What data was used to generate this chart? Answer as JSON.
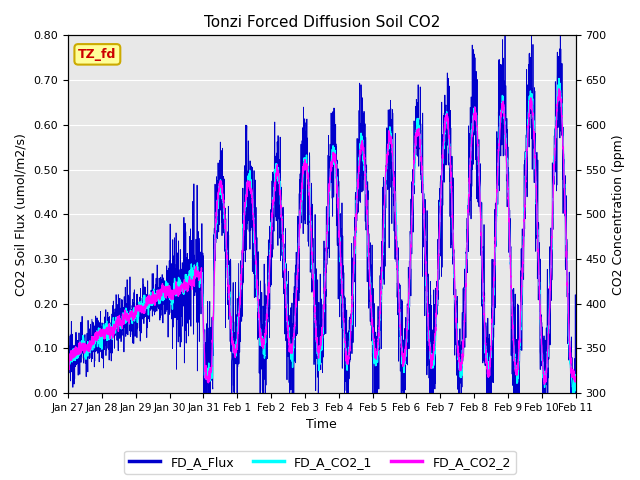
{
  "title": "Tonzi Forced Diffusion Soil CO2",
  "xlabel": "Time",
  "ylabel_left": "CO2 Soil Flux (umol/m2/s)",
  "ylabel_right": "CO2 Concentration (ppm)",
  "ylim_left": [
    0.0,
    0.8
  ],
  "ylim_right": [
    300,
    700
  ],
  "yticks_left": [
    0.0,
    0.1,
    0.2,
    0.3,
    0.4,
    0.5,
    0.6,
    0.7,
    0.8
  ],
  "yticks_right": [
    300,
    350,
    400,
    450,
    500,
    550,
    600,
    650,
    700
  ],
  "xtick_labels": [
    "Jan 27",
    "Jan 28",
    "Jan 29",
    "Jan 30",
    "Jan 31",
    "Feb 1",
    "Feb 2",
    "Feb 3",
    "Feb 4",
    "Feb 5",
    "Feb 6",
    "Feb 7",
    "Feb 8",
    "Feb 9",
    "Feb 10",
    "Feb 11"
  ],
  "color_flux": "#0000CC",
  "color_co2_1": "#00FFFF",
  "color_co2_2": "#FF00FF",
  "legend_label": "TZ_fd",
  "legend_bg": "#FFFF99",
  "legend_border": "#CCAA00",
  "legend_text_color": "#CC0000",
  "series_labels": [
    "FD_A_Flux",
    "FD_A_CO2_1",
    "FD_A_CO2_2"
  ],
  "bg_color": "#E8E8E8",
  "n_points": 3360,
  "n_days": 15
}
